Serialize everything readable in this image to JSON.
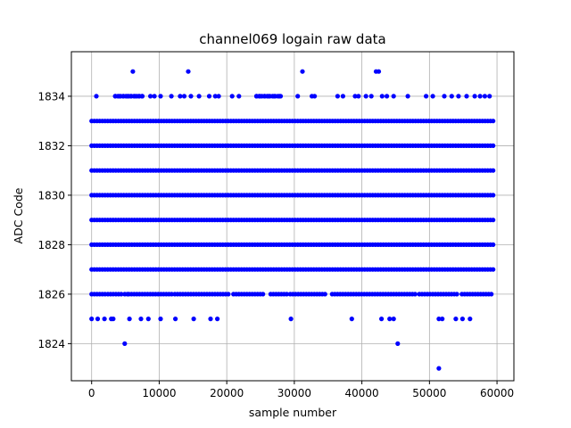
{
  "chart_data": {
    "type": "scatter",
    "title": "channel069 logain raw data",
    "xlabel": "sample number",
    "ylabel": "ADC Code",
    "xlim": [
      -3000,
      62500
    ],
    "ylim": [
      1822.5,
      1835.8
    ],
    "xticks": [
      0,
      10000,
      20000,
      30000,
      40000,
      50000,
      60000
    ],
    "xtick_labels": [
      "0",
      "10000",
      "20000",
      "30000",
      "40000",
      "50000",
      "60000"
    ],
    "yticks": [
      1824,
      1826,
      1828,
      1830,
      1832,
      1834
    ],
    "ytick_labels": [
      "1824",
      "1826",
      "1828",
      "1830",
      "1832",
      "1834"
    ],
    "grid": true,
    "marker_color": "#0000ff",
    "x_range": [
      0,
      59500
    ],
    "dense_levels": [
      1827,
      1828,
      1829,
      1830,
      1831,
      1832,
      1833
    ],
    "sparse_points": [
      {
        "x": 6100,
        "y": 1835
      },
      {
        "x": 14300,
        "y": 1835
      },
      {
        "x": 31200,
        "y": 1835
      },
      {
        "x": 42100,
        "y": 1835
      },
      {
        "x": 42500,
        "y": 1835
      },
      {
        "x": 700,
        "y": 1834
      },
      {
        "x": 3500,
        "y": 1834
      },
      {
        "x": 4100,
        "y": 1834
      },
      {
        "x": 4700,
        "y": 1834
      },
      {
        "x": 5300,
        "y": 1834
      },
      {
        "x": 5800,
        "y": 1834
      },
      {
        "x": 6400,
        "y": 1834
      },
      {
        "x": 7000,
        "y": 1834
      },
      {
        "x": 7500,
        "y": 1834
      },
      {
        "x": 8700,
        "y": 1834
      },
      {
        "x": 9300,
        "y": 1834
      },
      {
        "x": 10200,
        "y": 1834
      },
      {
        "x": 11800,
        "y": 1834
      },
      {
        "x": 13100,
        "y": 1834
      },
      {
        "x": 13700,
        "y": 1834
      },
      {
        "x": 14700,
        "y": 1834
      },
      {
        "x": 15900,
        "y": 1834
      },
      {
        "x": 17400,
        "y": 1834
      },
      {
        "x": 18300,
        "y": 1834
      },
      {
        "x": 18800,
        "y": 1834
      },
      {
        "x": 20800,
        "y": 1834
      },
      {
        "x": 21800,
        "y": 1834
      },
      {
        "x": 24400,
        "y": 1834
      },
      {
        "x": 24900,
        "y": 1834
      },
      {
        "x": 25600,
        "y": 1834
      },
      {
        "x": 26200,
        "y": 1834
      },
      {
        "x": 27000,
        "y": 1834
      },
      {
        "x": 27800,
        "y": 1834
      },
      {
        "x": 30500,
        "y": 1834
      },
      {
        "x": 32600,
        "y": 1834
      },
      {
        "x": 33000,
        "y": 1834
      },
      {
        "x": 36400,
        "y": 1834
      },
      {
        "x": 37200,
        "y": 1834
      },
      {
        "x": 39000,
        "y": 1834
      },
      {
        "x": 39500,
        "y": 1834
      },
      {
        "x": 40600,
        "y": 1834
      },
      {
        "x": 41400,
        "y": 1834
      },
      {
        "x": 43000,
        "y": 1834
      },
      {
        "x": 43700,
        "y": 1834
      },
      {
        "x": 44700,
        "y": 1834
      },
      {
        "x": 46800,
        "y": 1834
      },
      {
        "x": 49500,
        "y": 1834
      },
      {
        "x": 50500,
        "y": 1834
      },
      {
        "x": 52200,
        "y": 1834
      },
      {
        "x": 53300,
        "y": 1834
      },
      {
        "x": 54300,
        "y": 1834
      },
      {
        "x": 55500,
        "y": 1834
      },
      {
        "x": 56700,
        "y": 1834
      },
      {
        "x": 57500,
        "y": 1834
      },
      {
        "x": 58200,
        "y": 1834
      },
      {
        "x": 58900,
        "y": 1834
      },
      {
        "x": 0,
        "y": 1825
      },
      {
        "x": 900,
        "y": 1825
      },
      {
        "x": 1900,
        "y": 1825
      },
      {
        "x": 2900,
        "y": 1825
      },
      {
        "x": 3200,
        "y": 1825
      },
      {
        "x": 5600,
        "y": 1825
      },
      {
        "x": 7300,
        "y": 1825
      },
      {
        "x": 8400,
        "y": 1825
      },
      {
        "x": 10200,
        "y": 1825
      },
      {
        "x": 12400,
        "y": 1825
      },
      {
        "x": 15100,
        "y": 1825
      },
      {
        "x": 17600,
        "y": 1825
      },
      {
        "x": 18600,
        "y": 1825
      },
      {
        "x": 29500,
        "y": 1825
      },
      {
        "x": 38500,
        "y": 1825
      },
      {
        "x": 42900,
        "y": 1825
      },
      {
        "x": 44100,
        "y": 1825
      },
      {
        "x": 44700,
        "y": 1825
      },
      {
        "x": 51400,
        "y": 1825
      },
      {
        "x": 51900,
        "y": 1825
      },
      {
        "x": 53900,
        "y": 1825
      },
      {
        "x": 54900,
        "y": 1825
      },
      {
        "x": 56000,
        "y": 1825
      },
      {
        "x": 4900,
        "y": 1824
      },
      {
        "x": 45300,
        "y": 1824
      },
      {
        "x": 51400,
        "y": 1823
      }
    ],
    "band_1826": [
      [
        0,
        2100
      ],
      [
        2400,
        4400
      ],
      [
        4900,
        5300
      ],
      [
        5500,
        12000
      ],
      [
        12300,
        20500
      ],
      [
        21000,
        25500
      ],
      [
        26500,
        29000
      ],
      [
        29400,
        34800
      ],
      [
        35600,
        47900
      ],
      [
        48500,
        50100
      ],
      [
        50500,
        54200
      ],
      [
        54800,
        59500
      ]
    ],
    "band_1834": [
      [
        3500,
        7800
      ],
      [
        24400,
        28000
      ]
    ]
  }
}
